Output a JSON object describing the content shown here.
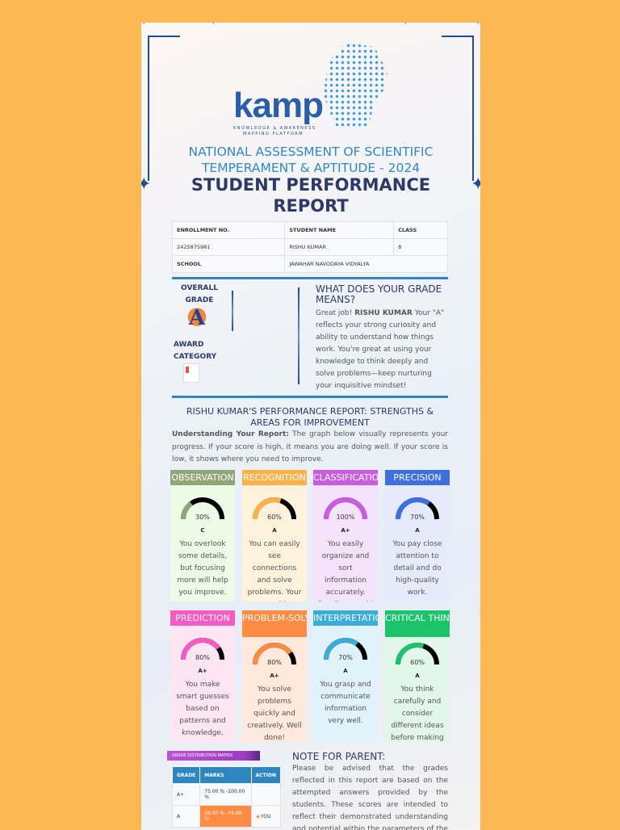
{
  "logo": {
    "word": "kamp",
    "tagline_1": "KNOWLEDGE & AWARENESS",
    "tagline_2": "MAPPING PLATFORM"
  },
  "title": {
    "line1": "NATIONAL ASSESSMENT OF SCIENTIFIC",
    "line2": "TEMPERAMENT & APTITUDE - 2024",
    "report": "STUDENT PERFORMANCE REPORT"
  },
  "info": {
    "enroll_label": "ENROLLMENT NO.",
    "name_label": "STUDENT NAME",
    "class_label": "CLASS",
    "enroll": "2425875981",
    "name": "RISHU KUMAR",
    "class": "8",
    "school_label": "SCHOOL",
    "school": "JAWAHAR NAVODAYA VIDYALYA"
  },
  "overall": {
    "label1": "OVERALL",
    "label2": "GRADE",
    "grade": "A",
    "award1": "AWARD",
    "award2": "CATEGORY"
  },
  "grade_meaning": {
    "heading": "WHAT DOES YOUR GRADE MEANS?",
    "pre": "Great job! ",
    "name": "RISHU KUMAR",
    "post": " Your \"A\" reflects your strong curiosity and ability to understand how things work. You're great at using your knowledge to think deeply and solve problems—keep nurturing your inquisitive mindset!"
  },
  "performance": {
    "heading": "RISHU KUMAR'S PERFORMANCE REPORT: STRENGTHS & AREAS FOR IMPROVEMENT",
    "intro_bold": "Understanding Your Report:",
    "intro": " The graph below visually represents your progress. If your score is high, it means you are doing well. If your score is low, it shows where you need to improve."
  },
  "skills": [
    {
      "name": "OBSERVATION",
      "percent": 30,
      "label": "30%",
      "grade": "C",
      "desc": "You overlook some details, but focusing more will help you improve.",
      "color": "#8fa67a",
      "bg": "#eefbe6"
    },
    {
      "name": "RECOGNITION",
      "percent": 60,
      "label": "60%",
      "grade": "A",
      "desc": "You can easily see connections and solve problems. Your recognition",
      "color": "#fbb24a",
      "bg": "#fff2dd"
    },
    {
      "name": "CLASSIFICATION",
      "percent": 100,
      "label": "100%",
      "grade": "A+",
      "desc": "You easily organize and sort information accurately. Excellent work!",
      "color": "#c95de0",
      "bg": "#f5e2fb"
    },
    {
      "name": "PRECISION",
      "percent": 70,
      "label": "70%",
      "grade": "A",
      "desc": "You pay close attention to detail and do high-quality work.",
      "color": "#3d6fe0",
      "bg": "#e5ebfa"
    },
    {
      "name": "PREDICTION",
      "percent": 80,
      "label": "80%",
      "grade": "A+",
      "desc": "You make smart guesses based on patterns and knowledge.",
      "color": "#f55bc0",
      "bg": "#fde5f3"
    },
    {
      "name": "PROBLEM-SOLVING",
      "percent": 80,
      "label": "80%",
      "grade": "A+",
      "desc": "You solve problems quickly and creatively. Well done!",
      "color": "#ff8c42",
      "bg": "#ffe8dc"
    },
    {
      "name": "INTERPRETATION",
      "percent": 70,
      "label": "70%",
      "grade": "A",
      "desc": "You grasp and communicate information very well.",
      "color": "#3aaed8",
      "bg": "#e0f2fa"
    },
    {
      "name": "CRITICAL THINKING",
      "percent": 60,
      "label": "60%",
      "grade": "A",
      "desc": "You think carefully and consider different ideas before making decisions.",
      "color": "#1bc46a",
      "bg": "#e2f7ea"
    }
  ],
  "matrix": {
    "title": "GRADE DISTRIBUTION MATRIX",
    "headers": [
      "GRADE",
      "MARKS",
      "ACTION"
    ],
    "rows": [
      {
        "grade": "A+",
        "marks": "75.00 % -100.00 %",
        "action": ""
      },
      {
        "grade": "A",
        "marks": "59.00 % -74.99 %",
        "action": "YOU"
      }
    ]
  },
  "note": {
    "heading": "NOTE FOR PARENT:",
    "text": "Please be advised that the grades reflected in this report are based on the attempted answers provided by the students. These scores are intended to reflect their demonstrated understanding and potential within the parameters of the assessment. It's"
  }
}
